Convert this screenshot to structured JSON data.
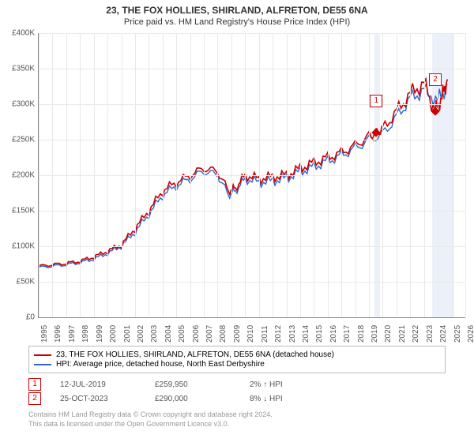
{
  "title": "23, THE FOX HOLLIES, SHIRLAND, ALFRETON, DE55 6NA",
  "subtitle": "Price paid vs. HM Land Registry's House Price Index (HPI)",
  "chart": {
    "type": "line",
    "background_color": "#ffffff",
    "grid_color": "#e8e8e8",
    "axis_color": "#888888",
    "ylim": [
      0,
      400000
    ],
    "ytick_step": 50000,
    "ytick_prefix": "£",
    "ytick_labels": [
      "£0",
      "£50K",
      "£100K",
      "£150K",
      "£200K",
      "£250K",
      "£300K",
      "£350K",
      "£400K"
    ],
    "xlim": [
      1995,
      2026
    ],
    "xticks": [
      1995,
      1996,
      1997,
      1998,
      1999,
      2000,
      2001,
      2002,
      2003,
      2004,
      2005,
      2006,
      2007,
      2008,
      2009,
      2010,
      2011,
      2012,
      2013,
      2014,
      2015,
      2016,
      2017,
      2018,
      2019,
      2020,
      2021,
      2022,
      2023,
      2024,
      2025,
      2026
    ],
    "series": [
      {
        "name": "property",
        "label": "23, THE FOX HOLLIES, SHIRLAND, ALFRETON, DE55 6NA (detached house)",
        "color": "#cc0000",
        "line_width": 1.6,
        "x": [
          1995,
          1996,
          1997,
          1998,
          1999,
          2000,
          2001,
          2002,
          2003,
          2004,
          2005,
          2006,
          2007,
          2008,
          2008.8,
          2009.3,
          2010,
          2011,
          2012,
          2013,
          2014,
          2015,
          2016,
          2017,
          2018,
          2019,
          2019.5,
          2020,
          2021,
          2022,
          2023,
          2023.8,
          2024.3,
          2024.7
        ],
        "y": [
          72000,
          74000,
          76000,
          79000,
          85000,
          93000,
          102000,
          125000,
          150000,
          178000,
          190000,
          200000,
          210000,
          205000,
          178000,
          182000,
          200000,
          195000,
          198000,
          200000,
          210000,
          218000,
          225000,
          232000,
          242000,
          255000,
          259950,
          265000,
          290000,
          315000,
          330000,
          290000,
          310000,
          335000
        ]
      },
      {
        "name": "hpi",
        "label": "HPI: Average price, detached house, North East Derbyshire",
        "color": "#3366cc",
        "line_width": 1.4,
        "x": [
          1995,
          1996,
          1997,
          1998,
          1999,
          2000,
          2001,
          2002,
          2003,
          2004,
          2005,
          2006,
          2007,
          2008,
          2008.8,
          2009.3,
          2010,
          2011,
          2012,
          2013,
          2014,
          2015,
          2016,
          2017,
          2018,
          2019,
          2020,
          2021,
          2022,
          2023,
          2024,
          2024.7
        ],
        "y": [
          70000,
          72000,
          74000,
          77000,
          82000,
          90000,
          100000,
          120000,
          145000,
          172000,
          185000,
          195000,
          206000,
          200000,
          172000,
          178000,
          195000,
          190000,
          192000,
          196000,
          205000,
          212000,
          220000,
          228000,
          238000,
          250000,
          258000,
          282000,
          308000,
          320000,
          305000,
          328000
        ]
      }
    ],
    "markers": [
      {
        "id": "1",
        "x": 2019.53,
        "y": 259950,
        "band_start": 2019.4,
        "band_end": 2019.8
      },
      {
        "id": "2",
        "x": 2023.82,
        "y": 290000,
        "band_start": 2023.6,
        "band_end": 2025.2
      }
    ],
    "tick_fontsize": 10,
    "title_fontsize": 12,
    "label_fontsize": 11
  },
  "legend": {
    "items": [
      {
        "color": "#cc0000",
        "label_key": "chart.series.0.label"
      },
      {
        "color": "#3366cc",
        "label_key": "chart.series.1.label"
      }
    ]
  },
  "sales": [
    {
      "id": "1",
      "date": "12-JUL-2019",
      "price": "£259,950",
      "delta": "2% ↑ HPI"
    },
    {
      "id": "2",
      "date": "25-OCT-2023",
      "price": "£290,000",
      "delta": "8% ↓ HPI"
    }
  ],
  "footer_line1": "Contains HM Land Registry data © Crown copyright and database right 2024.",
  "footer_line2": "This data is licensed under the Open Government Licence v3.0."
}
